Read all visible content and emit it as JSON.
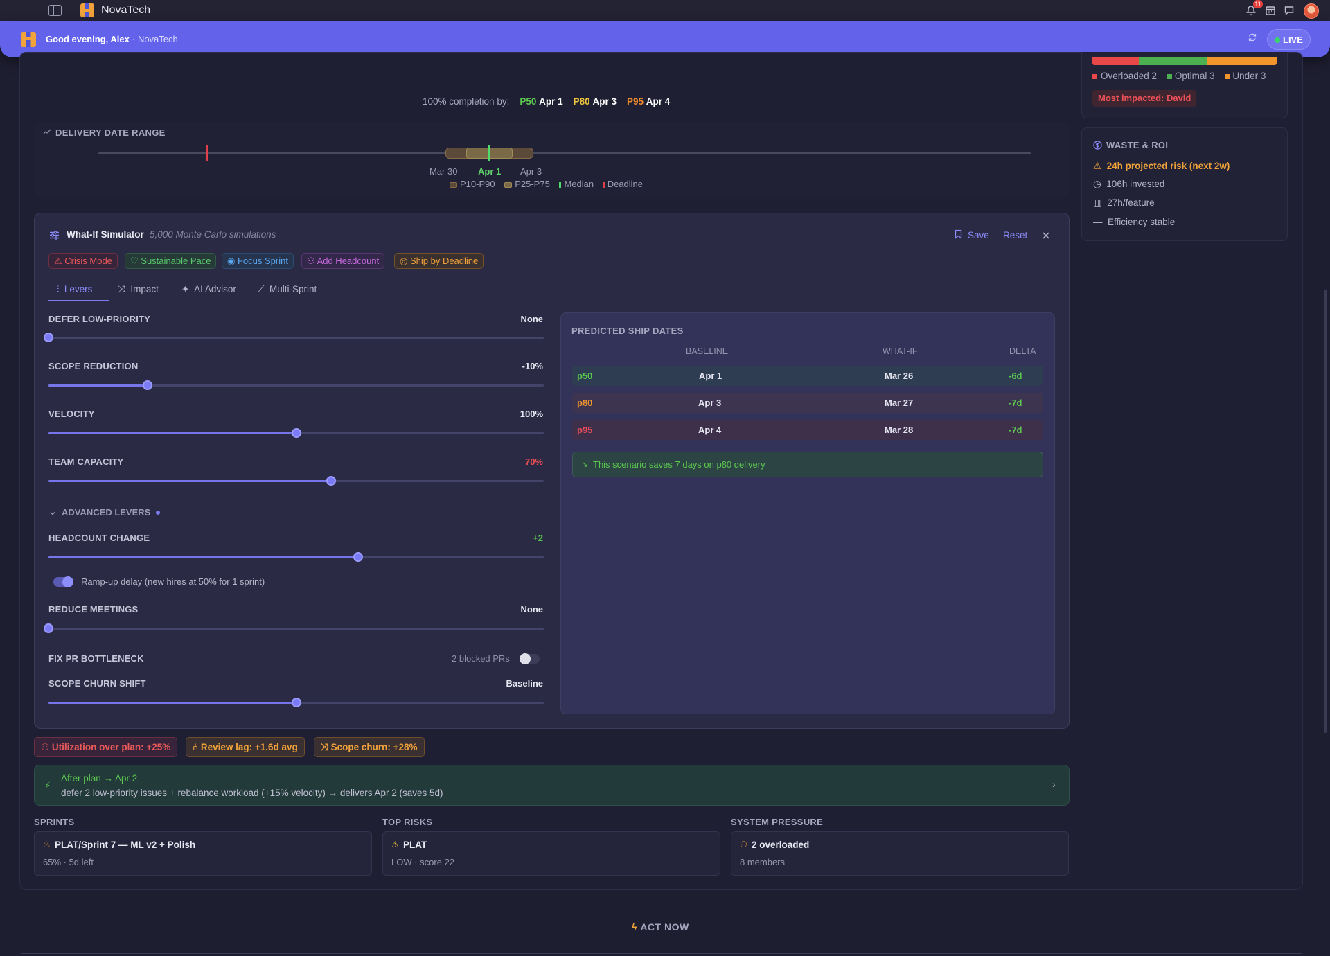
{
  "app": {
    "brand": "NovaTech",
    "notification_count": "11"
  },
  "banner": {
    "greeting": "Good evening, Alex",
    "org": "· NovaTech",
    "live_label": "LIVE"
  },
  "workload": {
    "legend": [
      {
        "label": "Overloaded 2",
        "color": "#e84848"
      },
      {
        "label": "Optimal 3",
        "color": "#4caf50"
      },
      {
        "label": "Under 3",
        "color": "#f0962c"
      }
    ],
    "most_impacted": "Most impacted: David"
  },
  "completion": {
    "prefix": "100% completion by:",
    "p50_label": "P50",
    "p50_date": "Apr 1",
    "p80_label": "P80",
    "p80_date": "Apr 3",
    "p95_label": "P95",
    "p95_date": "Apr 4"
  },
  "delivery": {
    "title": "DELIVERY DATE RANGE",
    "axis": [
      "Mar 30",
      "Apr 1",
      "Apr 3"
    ],
    "legend": [
      "P10-P90",
      "P25-P75",
      "Median",
      "Deadline"
    ]
  },
  "simulator": {
    "title": "What-If Simulator",
    "subtitle": "5,000 Monte Carlo simulations",
    "save": "Save",
    "reset": "Reset",
    "presets": [
      "Crisis Mode",
      "Sustainable Pace",
      "Focus Sprint",
      "Add Headcount",
      "Ship by Deadline"
    ],
    "tabs": [
      "Levers",
      "Impact",
      "AI Advisor",
      "Multi-Sprint"
    ],
    "levers": [
      {
        "label": "DEFER LOW-PRIORITY",
        "value": "None",
        "level": 0
      },
      {
        "label": "SCOPE REDUCTION",
        "value": "-10%",
        "level": 0.2
      },
      {
        "label": "VELOCITY",
        "value": "100%",
        "level": 0.5
      },
      {
        "label": "TEAM CAPACITY",
        "value": "70%",
        "level": 0.57
      }
    ],
    "advanced_label": "ADVANCED LEVERS",
    "advanced": [
      {
        "label": "HEADCOUNT CHANGE",
        "value": "+2",
        "level": 0.625
      },
      {
        "label": "REDUCE MEETINGS",
        "value": "None",
        "level": 0
      },
      {
        "label": "SCOPE CHURN SHIFT",
        "value": "Baseline",
        "level": 0.5
      }
    ],
    "rampup": "Ramp-up delay (new hires at 50% for 1 sprint)",
    "pr_label": "FIX PR BOTTLENECK",
    "pr_status": "2 blocked PRs"
  },
  "predicted": {
    "title": "PREDICTED SHIP DATES",
    "columns": [
      "BASELINE",
      "WHAT-IF",
      "DELTA"
    ],
    "rows": [
      {
        "p": "p50",
        "baseline": "Apr 1",
        "whatif": "Mar 26",
        "delta": "-6d"
      },
      {
        "p": "p80",
        "baseline": "Apr 3",
        "whatif": "Mar 27",
        "delta": "-7d"
      },
      {
        "p": "p95",
        "baseline": "Apr 4",
        "whatif": "Mar 28",
        "delta": "-7d"
      }
    ],
    "saves": "This scenario saves 7 days on p80 delivery"
  },
  "alerts": [
    "Utilization over plan: +25%",
    "Review lag: +1.6d avg",
    "Scope churn: +28%"
  ],
  "after_plan": {
    "title": "After plan → Apr 2",
    "detail": "defer 2 low-priority issues + rebalance workload (+15% velocity) → delivers Apr 2 (saves 5d)"
  },
  "sections": {
    "sprints": {
      "title": "SPRINTS",
      "name": "PLAT/Sprint 7 — ML v2 + Polish",
      "meta": "65% · 5d left"
    },
    "risks": {
      "title": "TOP RISKS",
      "name": "PLAT",
      "meta": "LOW · score 22"
    },
    "pressure": {
      "title": "SYSTEM PRESSURE",
      "name": "2 overloaded",
      "meta": "8 members"
    }
  },
  "roi": {
    "title": "WASTE & ROI",
    "risk": "24h projected risk (next 2w)",
    "invested": "106h invested",
    "per_feature": "27h/feature",
    "efficiency": "Efficiency stable"
  },
  "act_now": "ACT NOW"
}
